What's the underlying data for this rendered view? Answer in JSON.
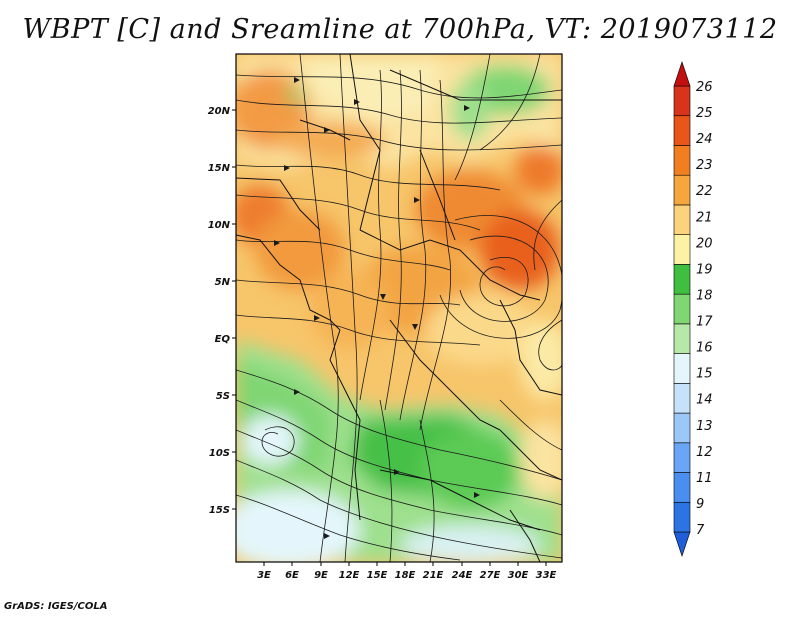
{
  "title": "WBPT [C] and Sreamline at 700hPa, VT: 2019073112",
  "footer": "GrADS: IGES/COLA",
  "map": {
    "lat_labels": [
      "20N",
      "15N",
      "10N",
      "5N",
      "EQ",
      "5S",
      "10S",
      "15S"
    ],
    "lon_labels": [
      "3E",
      "6E",
      "9E",
      "12E",
      "15E",
      "18E",
      "21E",
      "24E",
      "27E",
      "30E",
      "33E"
    ]
  },
  "colorbar": {
    "labels": [
      "7",
      "9",
      "11",
      "12",
      "13",
      "14",
      "15",
      "16",
      "17",
      "18",
      "19",
      "20",
      "21",
      "22",
      "23",
      "24",
      "25",
      "26"
    ],
    "colors": [
      "#1f5ed9",
      "#2c74e3",
      "#4a8ef0",
      "#6aa6f5",
      "#9cc8f8",
      "#c6e2fa",
      "#e4f6fb",
      "#b6e8a8",
      "#7fd672",
      "#3fbf3f",
      "#fbf2a6",
      "#fbd37c",
      "#f5a63d",
      "#f17f21",
      "#e8561a",
      "#d8331c",
      "#c21010"
    ]
  }
}
